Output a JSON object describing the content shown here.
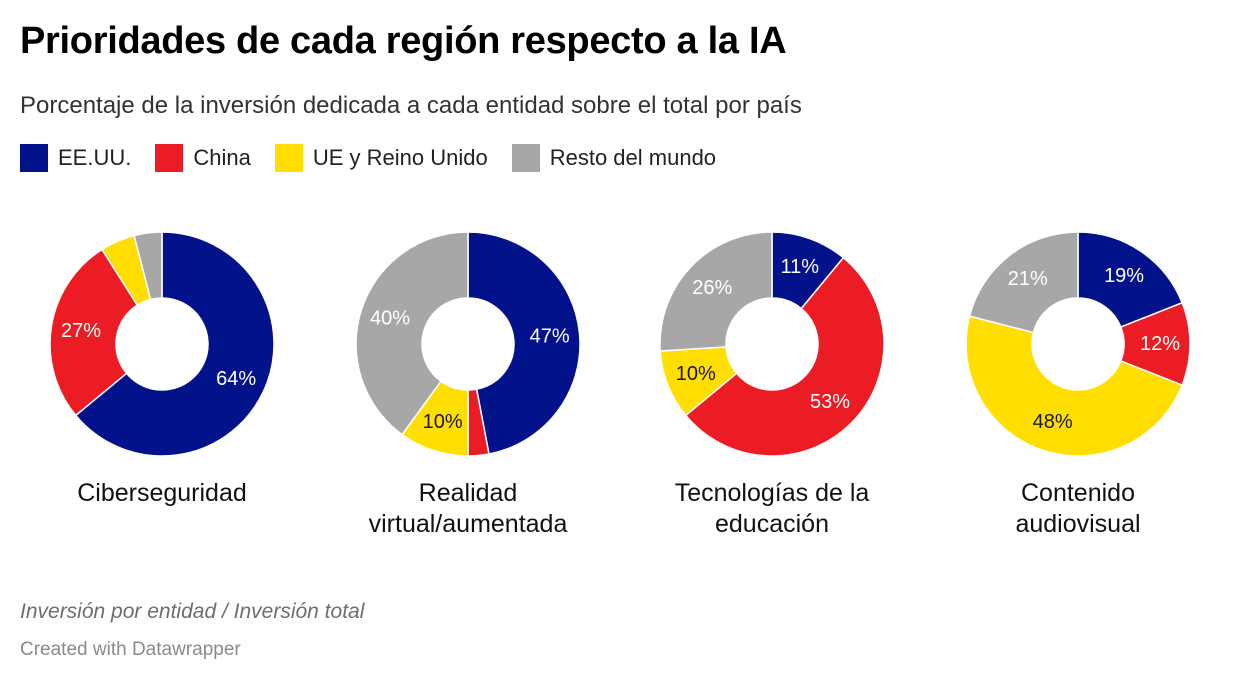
{
  "title": "Prioridades de cada región respecto a la IA",
  "subtitle": "Porcentaje de la inversión dedicada a cada entidad sobre el total por país",
  "legend": [
    {
      "label": "EE.UU.",
      "color": "#02128a"
    },
    {
      "label": "China",
      "color": "#ec1c24"
    },
    {
      "label": "UE y Reino Unido",
      "color": "#ffde00"
    },
    {
      "label": "Resto del mundo",
      "color": "#a7a7a7"
    }
  ],
  "chart_data": [
    {
      "type": "pie",
      "title": "Ciberseguridad",
      "title_lines": [
        "Ciberseguridad"
      ],
      "categories": [
        "EE.UU.",
        "China",
        "UE y Reino Unido",
        "Resto del mundo"
      ],
      "values": [
        64,
        27,
        5,
        4
      ],
      "labels": [
        "64%",
        "27%",
        "",
        ""
      ]
    },
    {
      "type": "pie",
      "title": "Realidad virtual/aumentada",
      "title_lines": [
        "Realidad",
        "virtual/aumentada"
      ],
      "categories": [
        "EE.UU.",
        "China",
        "UE y Reino Unido",
        "Resto del mundo"
      ],
      "values": [
        47,
        3,
        10,
        40
      ],
      "labels": [
        "47%",
        "",
        "10%",
        "40%"
      ]
    },
    {
      "type": "pie",
      "title": "Tecnologías de la educación",
      "title_lines": [
        "Tecnologías de la",
        "educación"
      ],
      "categories": [
        "EE.UU.",
        "China",
        "UE y Reino Unido",
        "Resto del mundo"
      ],
      "values": [
        11,
        53,
        10,
        26
      ],
      "labels": [
        "11%",
        "53%",
        "10%",
        "26%"
      ]
    },
    {
      "type": "pie",
      "title": "Contenido audiovisual",
      "title_lines": [
        "Contenido",
        "audiovisual"
      ],
      "categories": [
        "EE.UU.",
        "China",
        "UE y Reino Unido",
        "Resto del mundo"
      ],
      "values": [
        19,
        12,
        48,
        21
      ],
      "labels": [
        "19%",
        "12%",
        "48%",
        "21%"
      ]
    }
  ],
  "footnote": "Inversión por entidad / Inversión total",
  "credit": "Created with Datawrapper"
}
